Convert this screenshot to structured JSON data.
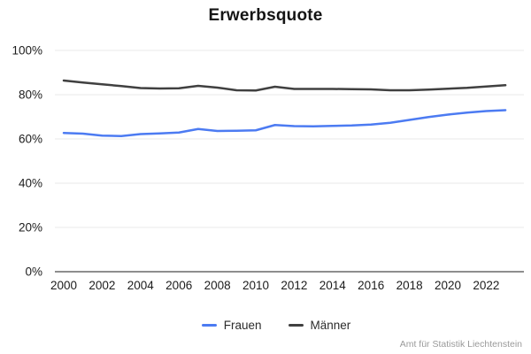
{
  "title": "Erwerbsquote",
  "source": "Amt für Statistik Liechtenstein",
  "colors": {
    "frauen": "#4c7bf2",
    "maenner": "#404040",
    "grid": "#eaeaea",
    "axis": "#4a4a4a",
    "tick_text": "#1c1c1c",
    "title_text": "#141414",
    "source_text": "#9a9a9a"
  },
  "legend": [
    {
      "label": "Frauen",
      "color": "#4c7bf2"
    },
    {
      "label": "Männer",
      "color": "#404040"
    }
  ],
  "chart_data": {
    "type": "line",
    "title": "Erwerbsquote",
    "xlabel": "",
    "ylabel": "",
    "x": [
      2000,
      2001,
      2002,
      2003,
      2004,
      2005,
      2006,
      2007,
      2008,
      2009,
      2010,
      2011,
      2012,
      2013,
      2014,
      2015,
      2016,
      2017,
      2018,
      2019,
      2020,
      2021,
      2022,
      2023
    ],
    "series": [
      {
        "name": "Frauen",
        "color": "#4c7bf2",
        "values": [
          62.7,
          62.4,
          61.5,
          61.3,
          62.2,
          62.5,
          62.9,
          64.5,
          63.6,
          63.7,
          63.9,
          66.3,
          65.8,
          65.7,
          65.9,
          66.1,
          66.5,
          67.3,
          68.6,
          69.9,
          71.0,
          71.9,
          72.6,
          73.0
        ]
      },
      {
        "name": "Männer",
        "color": "#404040",
        "values": [
          86.4,
          85.5,
          84.7,
          83.9,
          83.0,
          82.8,
          82.9,
          84.0,
          83.2,
          82.0,
          81.9,
          83.6,
          82.6,
          82.6,
          82.6,
          82.5,
          82.4,
          82.0,
          82.0,
          82.3,
          82.7,
          83.1,
          83.7,
          84.3
        ]
      }
    ],
    "ylim": [
      0,
      100
    ],
    "yticks": [
      0,
      20,
      40,
      60,
      80,
      100
    ],
    "ytick_labels": [
      "0%",
      "20%",
      "40%",
      "60%",
      "80%",
      "100%"
    ],
    "xticks": [
      2000,
      2002,
      2004,
      2006,
      2008,
      2010,
      2012,
      2014,
      2016,
      2018,
      2020,
      2022
    ],
    "grid": true,
    "legend_position": "bottom"
  }
}
